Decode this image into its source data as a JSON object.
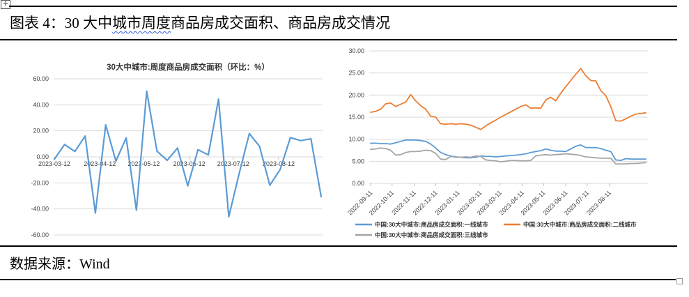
{
  "header": {
    "title_prefix": "图表 4：30 大中",
    "title_wavy": "城市周度",
    "title_suffix": "商品房成交面积、商品房成交情况"
  },
  "footer": {
    "source": "数据来源：Wind"
  },
  "icons": {
    "move_handle": "✛"
  },
  "colors": {
    "line_blue": "#5B9BD5",
    "line_orange": "#ED7D31",
    "line_gray": "#A5A5A5",
    "grid": "#D9D9D9",
    "tick": "#BFBFBF",
    "axis_text": "#404040",
    "wavy_underline": "#2F5BEA",
    "border": "#000000"
  },
  "chart_data": [
    {
      "type": "line",
      "title": "30大中城市:周度商品房成交面积（环比：%）",
      "x_start": "2023-03-12",
      "x": [
        "2023-03-12",
        "2023-03-19",
        "2023-03-26",
        "2023-04-02",
        "2023-04-09",
        "2023-04-16",
        "2023-04-23",
        "2023-04-30",
        "2023-05-07",
        "2023-05-14",
        "2023-05-21",
        "2023-05-28",
        "2023-06-04",
        "2023-06-11",
        "2023-06-18",
        "2023-06-25",
        "2023-07-02",
        "2023-07-09",
        "2023-07-16",
        "2023-07-23",
        "2023-07-30",
        "2023-08-06",
        "2023-08-13",
        "2023-08-20",
        "2023-08-27",
        "2023-09-03",
        "2023-09-10"
      ],
      "series": [
        {
          "color": "#5B9BD5",
          "values": [
            -1.8,
            9.5,
            4.1,
            16.0,
            -43.2,
            24.6,
            -3.2,
            14.6,
            -41.0,
            50.5,
            4.4,
            -2.7,
            6.8,
            -22.3,
            5.5,
            1.5,
            44.4,
            -46.0,
            -13.0,
            17.9,
            8.0,
            -21.8,
            -9.8,
            14.8,
            12.5,
            13.9,
            -30.6
          ]
        }
      ],
      "ylim": [
        -60,
        60
      ],
      "yticks": [
        {
          "v": 60,
          "label": "60.00"
        },
        {
          "v": 40,
          "label": "40.00"
        },
        {
          "v": 20,
          "label": "20.00"
        },
        {
          "v": 0,
          "label": "0.00"
        },
        {
          "v": -20,
          "label": "-20.00"
        },
        {
          "v": -40,
          "label": "-40.00"
        },
        {
          "v": -60,
          "label": "-60.00"
        }
      ],
      "xticks": [
        "2023-03-12",
        "2023-04-12",
        "2023-05-12",
        "2023-06-12",
        "2023-07-12",
        "2023-08-12"
      ],
      "axis_at_zero": true,
      "rotate_xlabels": false,
      "grid": true,
      "legend": null
    },
    {
      "type": "line",
      "title": "",
      "x_start": "2022-09-11",
      "series": [
        {
          "name": "中国:30大中城市:商品房成交面积:一线城市",
          "color": "#5B9BD5",
          "values": [
            9.1,
            9.1,
            9.0,
            9.0,
            8.9,
            9.2,
            9.5,
            9.8,
            9.8,
            9.8,
            9.7,
            9.5,
            8.9,
            8.0,
            7.0,
            6.5,
            6.2,
            6.0,
            5.9,
            5.8,
            5.8,
            5.9,
            6.2,
            6.1,
            6.1,
            6.0,
            6.1,
            6.2,
            6.3,
            6.4,
            6.5,
            6.7,
            7.0,
            7.2,
            7.4,
            7.8,
            7.5,
            7.3,
            7.3,
            7.2,
            7.8,
            8.4,
            8.7,
            8.1,
            8.1,
            8.1,
            7.9,
            7.5,
            7.2,
            5.3,
            5.2,
            5.6,
            5.5,
            5.5,
            5.5,
            5.5
          ]
        },
        {
          "name": "中国:30大中城市:商品房成交面积:二线城市",
          "color": "#ED7D31",
          "values": [
            16.1,
            16.3,
            16.8,
            18.0,
            18.2,
            17.4,
            17.9,
            18.4,
            20.1,
            18.7,
            17.6,
            16.8,
            15.2,
            15.0,
            13.5,
            13.4,
            13.5,
            13.4,
            13.5,
            13.4,
            13.2,
            12.7,
            12.2,
            13.0,
            13.7,
            14.3,
            15.0,
            15.6,
            16.2,
            16.8,
            17.4,
            17.8,
            17.0,
            17.1,
            17.0,
            18.9,
            19.5,
            18.7,
            20.4,
            21.9,
            23.3,
            24.7,
            26.0,
            24.4,
            23.3,
            23.2,
            21.0,
            19.9,
            17.4,
            14.2,
            14.1,
            14.6,
            15.2,
            15.7,
            15.8,
            16.0
          ]
        },
        {
          "name": "中国:30大中城市:商品房成交面积:三线城市",
          "color": "#A5A5A5",
          "values": [
            7.7,
            7.8,
            8.0,
            7.9,
            7.5,
            6.4,
            6.5,
            7.0,
            7.2,
            7.2,
            7.3,
            7.5,
            7.4,
            6.8,
            5.5,
            5.4,
            6.1,
            5.9,
            5.9,
            6.0,
            5.9,
            6.2,
            6.1,
            5.3,
            5.2,
            5.1,
            4.9,
            5.0,
            5.2,
            5.2,
            5.1,
            5.1,
            5.2,
            6.2,
            6.4,
            6.5,
            6.4,
            6.5,
            6.6,
            6.7,
            6.6,
            6.5,
            6.3,
            6.0,
            5.9,
            5.8,
            5.7,
            5.7,
            5.7,
            4.4,
            4.4,
            4.4,
            4.5,
            4.5,
            4.6,
            4.7
          ]
        }
      ],
      "ylim": [
        0,
        30
      ],
      "yticks": [
        {
          "v": 30,
          "label": "30.00"
        },
        {
          "v": 25,
          "label": "25.00"
        },
        {
          "v": 20,
          "label": "20.00"
        },
        {
          "v": 15,
          "label": "15.00"
        },
        {
          "v": 10,
          "label": "10.00"
        },
        {
          "v": 5,
          "label": "5.00"
        },
        {
          "v": 0,
          "label": "0.00"
        }
      ],
      "xticks": [
        "2022-09-11",
        "2022-10-11",
        "2022-11-11",
        "2022-12-11",
        "2023-01-11",
        "2023-02-11",
        "2023-03-11",
        "2023-04-11",
        "2023-05-11",
        "2023-06-11",
        "2023-07-11",
        "2023-08-11"
      ],
      "axis_at_zero": false,
      "rotate_xlabels": true,
      "grid": true,
      "legend": {
        "rows": [
          [
            0,
            1
          ],
          [
            2
          ]
        ]
      }
    }
  ]
}
